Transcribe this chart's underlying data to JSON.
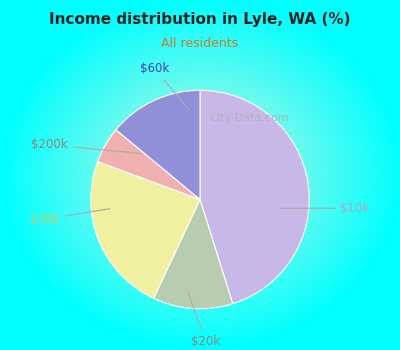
{
  "title": "Income distribution in Lyle, WA (%)",
  "subtitle": "All residents",
  "title_color": "#222222",
  "subtitle_color": "#cc7733",
  "background_color": "#00ffff",
  "labels": [
    "$10k",
    "$20k",
    "$30k",
    "$200k",
    "$60k"
  ],
  "values": [
    42,
    11,
    22,
    5,
    13
  ],
  "colors": [
    "#c8b8e8",
    "#b8ccb0",
    "#f0f0a0",
    "#f0b0b0",
    "#9090d8"
  ],
  "watermark": "City-Data.com",
  "label_color_map": {
    "$10k": "#aaaacc",
    "$20k": "#888888",
    "$30k": "#cccc66",
    "$200k": "#888888",
    "$60k": "#4444aa"
  }
}
